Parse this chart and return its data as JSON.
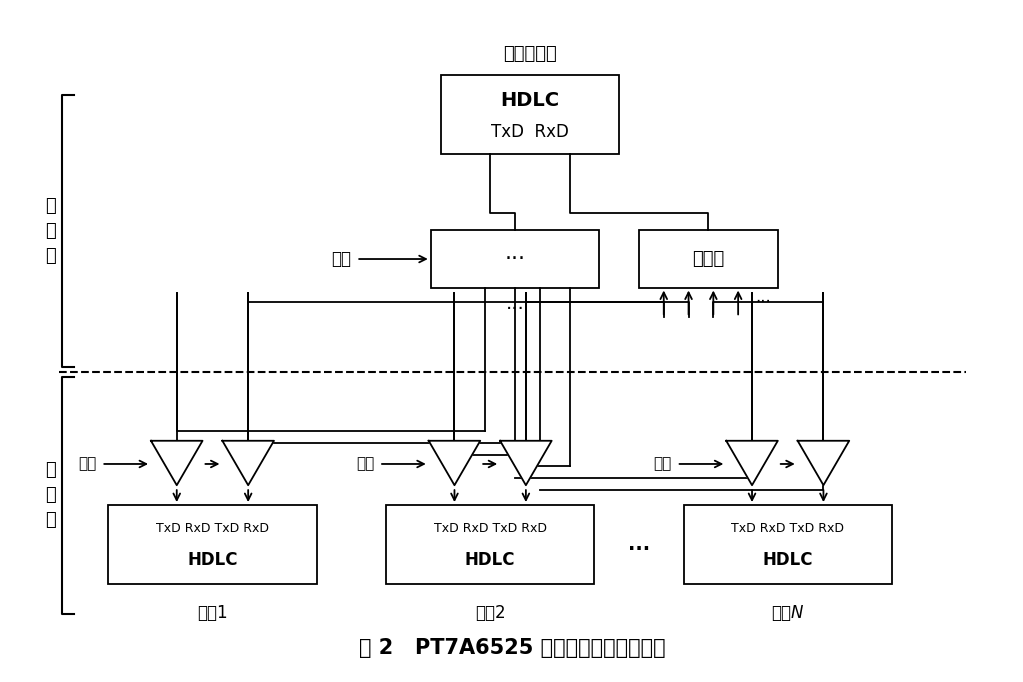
{
  "title": "图 2   PT7A6525 在交换机中的应用连接",
  "bg_color": "#ffffff",
  "text_color": "#000000",
  "top_label": "主网控制板",
  "hdlc_top_line1": "HDLC",
  "hdlc_top_line2": "TxD  RxD",
  "mux_label": "多选一",
  "ctrl_label_top": "控制",
  "layer1_label": "主\n控\n层",
  "layer2_label": "接\n口\n层",
  "board_labels": [
    "单板1",
    "单板2",
    "单板N"
  ],
  "board_label_N_italic": true,
  "hdlc_box_line1": "TxD RxD TxD RxD",
  "hdlc_box_line2": "HDLC",
  "dots": "···",
  "ellipsis_between_boards": "...",
  "lw": 1.3
}
